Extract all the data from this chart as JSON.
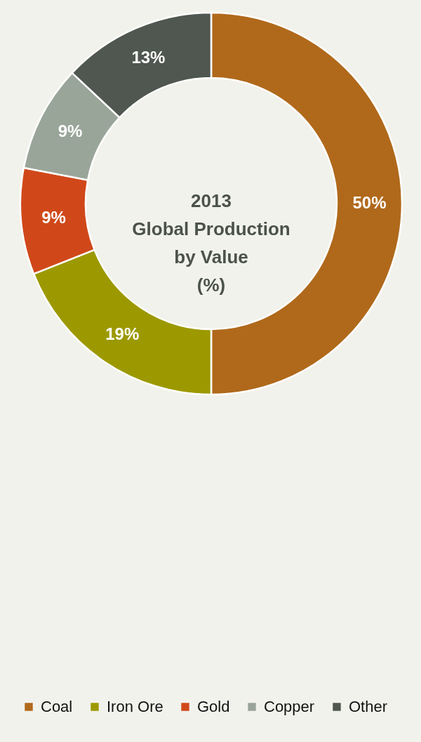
{
  "chart_data": {
    "type": "donut",
    "title": "2013\nGlobal Production\nby Value\n(%)",
    "categories": [
      "Coal",
      "Iron Ore",
      "Gold",
      "Copper",
      "Other"
    ],
    "values": [
      50,
      19,
      9,
      9,
      13
    ],
    "colors": [
      "#b0691b",
      "#9c9900",
      "#d0481a",
      "#9aa59a",
      "#4f5750"
    ],
    "value_labels": [
      "50%",
      "19%",
      "9%",
      "9%",
      "13%"
    ],
    "legend": "bottom"
  }
}
